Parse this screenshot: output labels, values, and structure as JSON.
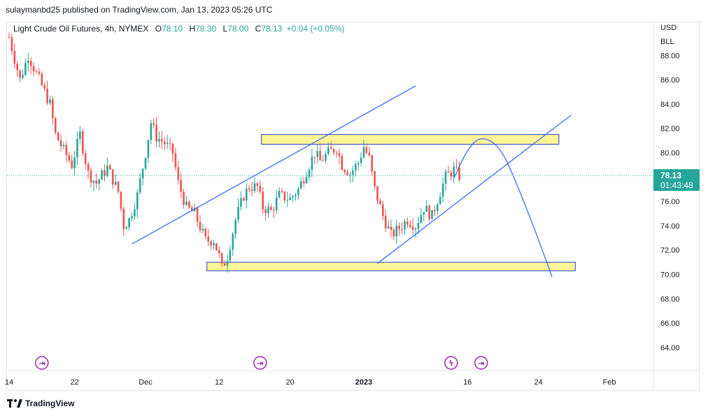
{
  "publisher_line": "sulaymanbd25 published on TradingView.com, Jan 13, 2023 05:26 UTC",
  "legend": {
    "symbol": "Light Crude Oil Futures, 4h, NYMEX",
    "open_label": "O",
    "open": "78.10",
    "high_label": "H",
    "high": "78.30",
    "low_label": "L",
    "low": "78.00",
    "close_label": "C",
    "close": "78.13",
    "change": "+0.04 (+0.05%)"
  },
  "price_scale": {
    "currency": "USD",
    "unit": "BLL",
    "last_price": "78.13",
    "countdown": "01:43:48"
  },
  "footer": {
    "brand": "TradingView"
  },
  "colors": {
    "up": "#26a69a",
    "down": "#ef5350",
    "trendline": "#2962ff",
    "zone_fill": "#fff176",
    "zone_border": "#1e3fbf",
    "event": "#9c27b0"
  },
  "chart_data": {
    "type": "candlestick",
    "ylim": [
      62.0,
      91.0
    ],
    "y_ticks": [
      "64.00",
      "66.00",
      "68.00",
      "70.00",
      "72.00",
      "74.00",
      "76.00",
      "78.00",
      "80.00",
      "82.00",
      "84.00",
      "86.00",
      "88.00"
    ],
    "x_ticks": [
      "14",
      "22",
      "Dec",
      "12",
      "20",
      "2023",
      "16",
      "24",
      "Feb"
    ],
    "x_tick_index": [
      0,
      24,
      50,
      77,
      103,
      130,
      168,
      194,
      220
    ],
    "price_path": [
      [
        0,
        89.5
      ],
      [
        4,
        86.0
      ],
      [
        7,
        88.0
      ],
      [
        12,
        85.5
      ],
      [
        15,
        84.0
      ],
      [
        17,
        81.5
      ],
      [
        20,
        80.2
      ],
      [
        23,
        79.0
      ],
      [
        26,
        81.5
      ],
      [
        29,
        78.3
      ],
      [
        32,
        77.5
      ],
      [
        36,
        78.8
      ],
      [
        40,
        76.8
      ],
      [
        42,
        74.0
      ],
      [
        44,
        74.5
      ],
      [
        47,
        76.5
      ],
      [
        50,
        80.0
      ],
      [
        52,
        82.5
      ],
      [
        54,
        81.3
      ],
      [
        57,
        80.8
      ],
      [
        60,
        80.0
      ],
      [
        62,
        77.5
      ],
      [
        65,
        75.5
      ],
      [
        68,
        75.0
      ],
      [
        72,
        72.8
      ],
      [
        75,
        72.8
      ],
      [
        77,
        71.5
      ],
      [
        78,
        70.5
      ],
      [
        80,
        71.5
      ],
      [
        83,
        74.5
      ],
      [
        86,
        76.5
      ],
      [
        88,
        77.2
      ],
      [
        91,
        77.2
      ],
      [
        93,
        75.5
      ],
      [
        96,
        75.2
      ],
      [
        99,
        76.5
      ],
      [
        103,
        76.2
      ],
      [
        106,
        77.0
      ],
      [
        109,
        78.5
      ],
      [
        112,
        80.0
      ],
      [
        114,
        79.3
      ],
      [
        117,
        80.0
      ],
      [
        120,
        80.4
      ],
      [
        122,
        79.0
      ],
      [
        125,
        78.3
      ],
      [
        128,
        79.2
      ],
      [
        130,
        80.5
      ],
      [
        132,
        79.5
      ],
      [
        134,
        77.0
      ],
      [
        137,
        74.8
      ],
      [
        140,
        73.2
      ],
      [
        143,
        73.8
      ],
      [
        146,
        74.5
      ],
      [
        149,
        74.0
      ],
      [
        152,
        75.5
      ],
      [
        155,
        74.8
      ],
      [
        158,
        76.8
      ],
      [
        160,
        78.0
      ],
      [
        163,
        78.6
      ],
      [
        165,
        78.1
      ]
    ],
    "last_close": 78.13,
    "zones": [
      {
        "name": "resistance",
        "x1": 92.5,
        "x2": 201.5,
        "y_low": 80.7,
        "y_high": 81.5
      },
      {
        "name": "support",
        "x1": 72.5,
        "x2": 207.5,
        "y_low": 70.3,
        "y_high": 71.0
      }
    ],
    "trendlines": [
      {
        "name": "upper-channel",
        "points": [
          [
            45,
            72.5
          ],
          [
            149,
            85.5
          ]
        ]
      },
      {
        "name": "rising-support",
        "points": [
          [
            135,
            70.9
          ],
          [
            206,
            83.1
          ]
        ]
      }
    ],
    "projection": [
      [
        163,
        77.9
      ],
      [
        168,
        80.3
      ],
      [
        173,
        81.4
      ],
      [
        180,
        80.5
      ],
      [
        186,
        77.5
      ],
      [
        193,
        73.5
      ],
      [
        199,
        69.8
      ]
    ],
    "events": [
      {
        "name": "dividend-icon",
        "glyph": "⇥",
        "x": 12
      },
      {
        "name": "dividend-icon",
        "glyph": "⇥",
        "x": 92
      },
      {
        "name": "earnings-icon",
        "glyph": "ϟ",
        "x": 162
      },
      {
        "name": "dividend-icon",
        "glyph": "⇥",
        "x": 173
      }
    ]
  }
}
